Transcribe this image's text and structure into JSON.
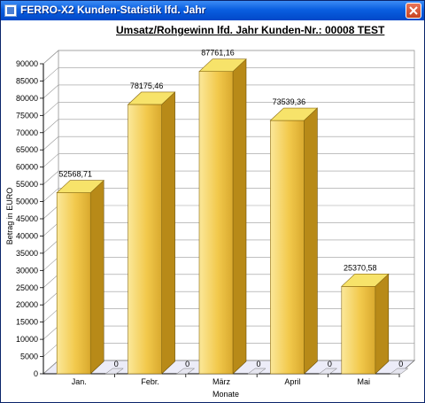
{
  "window": {
    "title": "FERRO-X2 Kunden-Statistik lfd. Jahr"
  },
  "chart_data": {
    "type": "bar",
    "title": "Umsatz/Rohgewinn lfd. Jahr  Kunden-Nr.: 00008 TEST",
    "xlabel": "Monate",
    "ylabel": "Betrag in EURO",
    "categories": [
      "Jan.",
      "Febr.",
      "März",
      "April",
      "Mai"
    ],
    "series": [
      {
        "values": [
          52568.71,
          78175.46,
          87761.16,
          73539.36,
          25370.58
        ],
        "labels": [
          "52568,71",
          "78175,46",
          "87761,16",
          "73539,36",
          "25370,58"
        ]
      },
      {
        "values": [
          0,
          0,
          0,
          0,
          0
        ],
        "labels": [
          "0",
          "0",
          "0",
          "0",
          "0"
        ]
      }
    ],
    "ylim": [
      0,
      90000
    ],
    "yticks": [
      0,
      5000,
      10000,
      15000,
      20000,
      25000,
      30000,
      35000,
      40000,
      45000,
      50000,
      55000,
      60000,
      65000,
      70000,
      75000,
      80000,
      85000,
      90000
    ],
    "grid": true,
    "style": "3d",
    "bar_color": "#f2c94c"
  }
}
